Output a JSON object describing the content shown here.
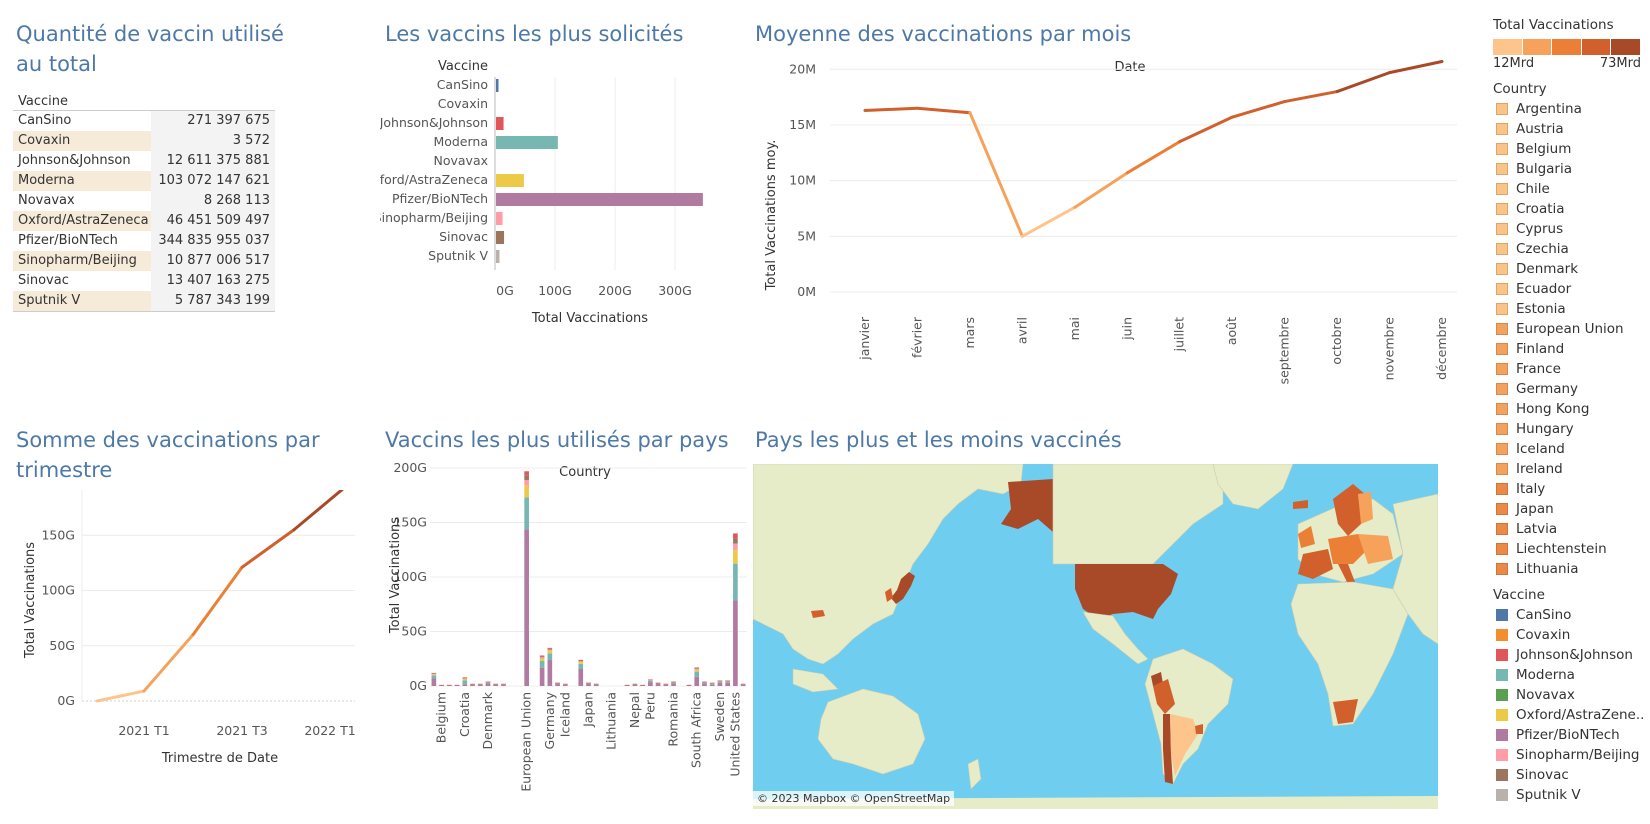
{
  "titles": {
    "qty": "Quantité de vaccin utilisé au total",
    "most": "Les vaccins les plus solicités",
    "avg": "Moyenne des vaccinations par mois",
    "sum": "Somme des vaccinations par trimestre",
    "bycountry": "Vaccins les plus utilisés par pays",
    "map": "Pays les plus et les moins vaccinés"
  },
  "table": {
    "header": "Vaccine",
    "rows": [
      {
        "name": "CanSino",
        "value": "271 397 675"
      },
      {
        "name": "Covaxin",
        "value": "3 572"
      },
      {
        "name": "Johnson&Johnson",
        "value": "12 611 375 881"
      },
      {
        "name": "Moderna",
        "value": "103 072 147 621"
      },
      {
        "name": "Novavax",
        "value": "8 268 113"
      },
      {
        "name": "Oxford/AstraZeneca",
        "value": "46 451 509 497"
      },
      {
        "name": "Pfizer/BioNTech",
        "value": "344 835 955 037"
      },
      {
        "name": "Sinopharm/Beijing",
        "value": "10 877 006 517"
      },
      {
        "name": "Sinovac",
        "value": "13 407 163 275"
      },
      {
        "name": "Sputnik V",
        "value": "5 787 343 199"
      }
    ]
  },
  "chart_data": [
    {
      "type": "bar",
      "orientation": "horizontal",
      "title": "Les vaccins les plus solicités",
      "ylabel": "Vaccine",
      "xlabel": "Total Vaccinations",
      "x_ticks": [
        "0G",
        "100G",
        "200G",
        "300G"
      ],
      "xlim": [
        0,
        350
      ],
      "unit": "G",
      "categories": [
        "CanSino",
        "Covaxin",
        "Johnson&Johnson",
        "Moderna",
        "Novavax",
        "Oxford/AstraZeneca",
        "Pfizer/BioNTech",
        "Sinopharm/Beijing",
        "Sinovac",
        "Sputnik V"
      ],
      "values": [
        0.27,
        0.0,
        12.6,
        103.1,
        0.01,
        46.5,
        344.8,
        10.9,
        13.4,
        5.8
      ],
      "colors": [
        "#4e79a7",
        "#f28e2b",
        "#e15759",
        "#76b7b2",
        "#59a14f",
        "#edc948",
        "#b07aa1",
        "#ff9da7",
        "#9c755f",
        "#bab0ac"
      ]
    },
    {
      "type": "line",
      "title": "Moyenne des vaccinations par mois",
      "header": "Date",
      "ylabel": "Total Vaccinations moy.",
      "y_ticks": [
        "0M",
        "5M",
        "10M",
        "15M",
        "20M"
      ],
      "ylim": [
        0,
        22
      ],
      "unit": "M",
      "categories": [
        "janvier",
        "février",
        "mars",
        "avril",
        "mai",
        "juin",
        "juillet",
        "août",
        "septembre",
        "octobre",
        "novembre",
        "décembre"
      ],
      "values": [
        16.3,
        16.5,
        16.1,
        5.0,
        7.6,
        10.7,
        13.5,
        15.7,
        17.1,
        18.0,
        19.7,
        20.7
      ]
    },
    {
      "type": "line",
      "title": "Somme des vaccinations par trimestre",
      "xlabel": "Trimestre de Date",
      "ylabel": "Total Vaccinations",
      "y_ticks": [
        "0G",
        "50G",
        "100G",
        "150G",
        "200G"
      ],
      "ylim": [
        0,
        200
      ],
      "unit": "G",
      "x_ticks": [
        "2021 T1",
        "2021 T3",
        "2022 T1"
      ],
      "x": [
        "2020 T4",
        "2021 T1",
        "2021 T2",
        "2021 T3",
        "2021 T4",
        "2022 T1"
      ],
      "values": [
        0,
        9,
        60,
        121,
        155,
        192
      ]
    },
    {
      "type": "bar",
      "stacked": true,
      "title": "Vaccins les plus utilisés par pays",
      "header": "Country",
      "ylabel": "Total Vaccinations",
      "y_ticks": [
        "0G",
        "50G",
        "100G",
        "150G",
        "200G"
      ],
      "ylim": [
        0,
        200
      ],
      "unit": "G",
      "x_tick_labels": [
        "Belgium",
        "Croatia",
        "Denmark",
        "European Union",
        "Germany",
        "Iceland",
        "Japan",
        "Lithuania",
        "Nepal",
        "Peru",
        "Romania",
        "South Africa",
        "Sweden",
        "United States"
      ],
      "country_totals": [
        12,
        1,
        1,
        1,
        8,
        2,
        2,
        4,
        2,
        2,
        0,
        0,
        197,
        0,
        28,
        35,
        3,
        2,
        0,
        24,
        3,
        2,
        0,
        0,
        0,
        1,
        2,
        1,
        6,
        3,
        2,
        4,
        0,
        1,
        17,
        4,
        3,
        5,
        5,
        140,
        2
      ],
      "pfizer_share": [
        0.6,
        0.6,
        0.6,
        0.6,
        0.2,
        0.6,
        0.6,
        0.6,
        0.6,
        0.6,
        0.6,
        0.6,
        0.73,
        0.6,
        0.6,
        0.68,
        0.6,
        0.6,
        0.6,
        0.65,
        0.6,
        0.6,
        0.6,
        0.6,
        0.6,
        0.6,
        0.6,
        0.6,
        0.6,
        0.6,
        0.6,
        0.6,
        0.6,
        0.6,
        0.5,
        0.6,
        0.4,
        0.6,
        0.6,
        0.56,
        0.6
      ]
    }
  ],
  "map": {
    "credit": "© 2023 Mapbox © OpenStreetMap",
    "ocean_color": "#6fcdf0",
    "land_color": "#e6ebc8"
  },
  "legend": {
    "total_title": "Total Vaccinations",
    "total_min": "12Mrd",
    "total_max": "73Mrd",
    "gradient_colors": [
      "#fdc48c",
      "#f6a25a",
      "#ec7f36",
      "#d1602d",
      "#a84a27"
    ],
    "country_title": "Country",
    "countries": [
      "Argentina",
      "Austria",
      "Belgium",
      "Bulgaria",
      "Chile",
      "Croatia",
      "Cyprus",
      "Czechia",
      "Denmark",
      "Ecuador",
      "Estonia",
      "European Union",
      "Finland",
      "France",
      "Germany",
      "Hong Kong",
      "Hungary",
      "Iceland",
      "Ireland",
      "Italy",
      "Japan",
      "Latvia",
      "Liechtenstein",
      "Lithuania"
    ],
    "vaccine_title": "Vaccine",
    "vaccines": [
      {
        "name": "CanSino",
        "color": "#4e79a7"
      },
      {
        "name": "Covaxin",
        "color": "#f28e2b"
      },
      {
        "name": "Johnson&Johnson",
        "color": "#e15759"
      },
      {
        "name": "Moderna",
        "color": "#76b7b2"
      },
      {
        "name": "Novavax",
        "color": "#59a14f"
      },
      {
        "name": "Oxford/AstraZene..",
        "color": "#edc948"
      },
      {
        "name": "Pfizer/BioNTech",
        "color": "#b07aa1"
      },
      {
        "name": "Sinopharm/Beijing",
        "color": "#ff9da7"
      },
      {
        "name": "Sinovac",
        "color": "#9c755f"
      },
      {
        "name": "Sputnik V",
        "color": "#bab0ac"
      }
    ]
  }
}
